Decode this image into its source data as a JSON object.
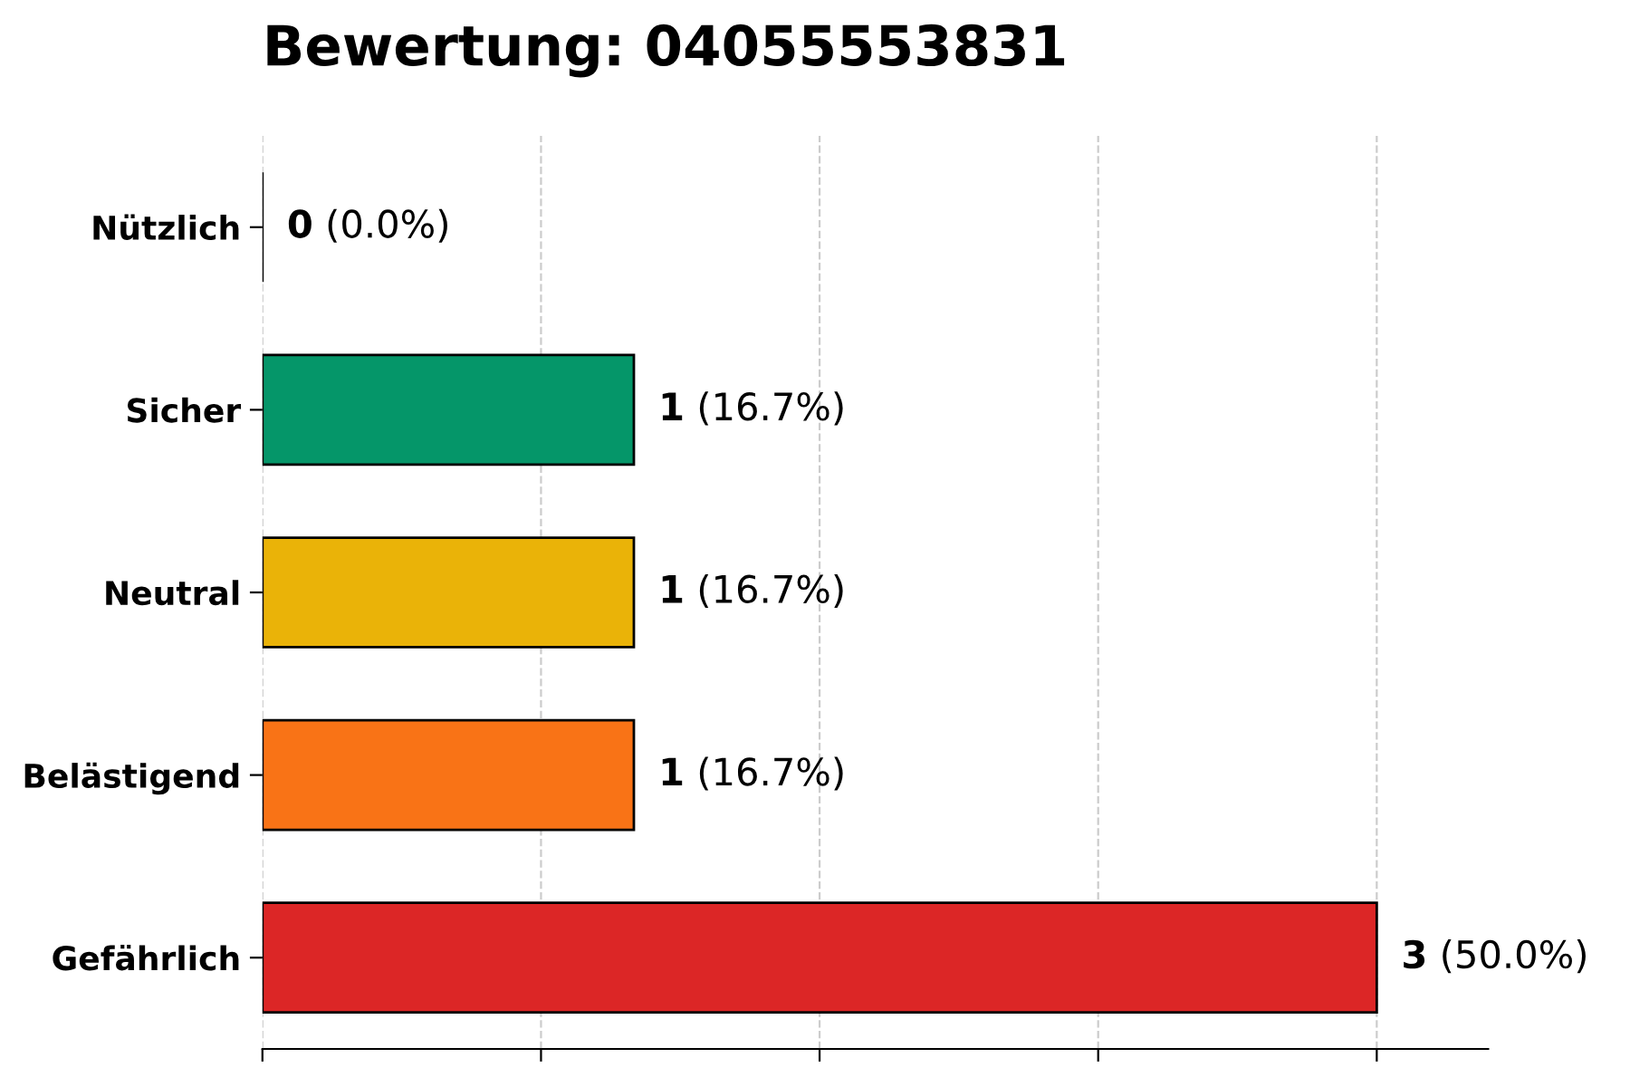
{
  "chart_data": {
    "type": "bar",
    "orientation": "horizontal",
    "title": "Bewertung: 04055553831",
    "categories": [
      "Nützlich",
      "Sicher",
      "Neutral",
      "Belästigend",
      "Gefährlich"
    ],
    "values": [
      0,
      1,
      1,
      1,
      3
    ],
    "colors": [
      "#000000",
      "#059669",
      "#eab308",
      "#f97316",
      "#dc2626"
    ],
    "value_labels": [
      "0 (0.0%)",
      "1 (16.7%)",
      "1 (16.7%)",
      "1 (16.7%)",
      "3 (50.0%)"
    ],
    "xlim": [
      0,
      3.3
    ],
    "xticks": [
      {
        "value": 0,
        "label": null
      },
      {
        "value": 0.75,
        "label": null
      },
      {
        "value": 1.5,
        "label": null
      },
      {
        "value": 2.25,
        "label": null
      },
      {
        "value": 3,
        "label": null
      }
    ],
    "tick_labels": "y",
    "grid": "x",
    "legend": false
  }
}
